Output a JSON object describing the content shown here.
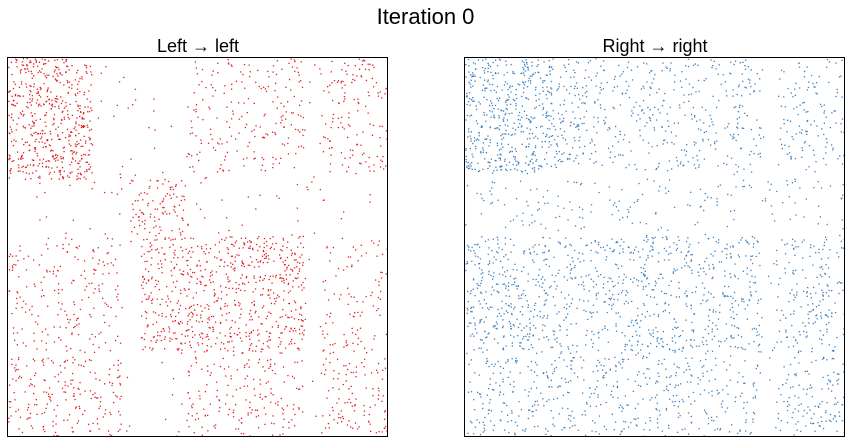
{
  "figure": {
    "suptitle": "Iteration 0"
  },
  "chart_data": [
    {
      "type": "heatmap",
      "title": "Left → left",
      "color": "#e0201e",
      "grid": false,
      "axes_ticks": false,
      "matrix_blocks": [
        {
          "rows": [
            0.0,
            0.13
          ],
          "cols": [
            0.0,
            0.13
          ],
          "density": 0.55
        },
        {
          "rows": [
            0.13,
            0.32
          ],
          "cols": [
            0.0,
            0.13
          ],
          "density": 0.42
        },
        {
          "rows": [
            0.13,
            0.32
          ],
          "cols": [
            0.13,
            0.22
          ],
          "density": 0.55
        },
        {
          "rows": [
            0.0,
            0.13
          ],
          "cols": [
            0.13,
            0.22
          ],
          "density": 0.35
        },
        {
          "rows": [
            0.32,
            0.47
          ],
          "cols": [
            0.32,
            0.47
          ],
          "density": 0.25
        },
        {
          "rows": [
            0.47,
            0.78
          ],
          "cols": [
            0.35,
            0.78
          ],
          "density": 0.32
        },
        {
          "rows": [
            0.0,
            0.3
          ],
          "cols": [
            0.47,
            0.78
          ],
          "density": 0.12
        },
        {
          "rows": [
            0.47,
            0.78
          ],
          "cols": [
            0.0,
            0.3
          ],
          "density": 0.12
        },
        {
          "rows": [
            0.79,
            1.0
          ],
          "cols": [
            0.47,
            0.78
          ],
          "density": 0.14
        },
        {
          "rows": [
            0.0,
            0.3
          ],
          "cols": [
            0.82,
            1.0
          ],
          "density": 0.14
        },
        {
          "rows": [
            0.47,
            0.78
          ],
          "cols": [
            0.82,
            1.0
          ],
          "density": 0.1
        },
        {
          "rows": [
            0.79,
            1.0
          ],
          "cols": [
            0.82,
            1.0
          ],
          "density": 0.16
        },
        {
          "rows": [
            0.79,
            1.0
          ],
          "cols": [
            0.0,
            0.3
          ],
          "density": 0.18
        },
        {
          "rows": [
            0.0,
            1.0
          ],
          "cols": [
            0.0,
            1.0
          ],
          "density": 0.02
        }
      ]
    },
    {
      "type": "heatmap",
      "title": "Right → right",
      "color": "#3a7fbf",
      "grid": false,
      "axes_ticks": false,
      "matrix_blocks": [
        {
          "rows": [
            0.0,
            0.3
          ],
          "cols": [
            0.0,
            0.23
          ],
          "density": 0.42
        },
        {
          "rows": [
            0.0,
            0.3
          ],
          "cols": [
            0.23,
            0.32
          ],
          "density": 0.25
        },
        {
          "rows": [
            0.0,
            0.3
          ],
          "cols": [
            0.32,
            0.78
          ],
          "density": 0.14
        },
        {
          "rows": [
            0.0,
            0.3
          ],
          "cols": [
            0.82,
            1.0
          ],
          "density": 0.14
        },
        {
          "rows": [
            0.32,
            0.45
          ],
          "cols": [
            0.0,
            1.0
          ],
          "density": 0.06
        },
        {
          "rows": [
            0.47,
            0.78
          ],
          "cols": [
            0.0,
            0.23
          ],
          "density": 0.28
        },
        {
          "rows": [
            0.47,
            0.78
          ],
          "cols": [
            0.23,
            0.78
          ],
          "density": 0.22
        },
        {
          "rows": [
            0.47,
            0.78
          ],
          "cols": [
            0.82,
            1.0
          ],
          "density": 0.18
        },
        {
          "rows": [
            0.79,
            1.0
          ],
          "cols": [
            0.0,
            0.78
          ],
          "density": 0.17
        },
        {
          "rows": [
            0.79,
            1.0
          ],
          "cols": [
            0.82,
            1.0
          ],
          "density": 0.18
        },
        {
          "rows": [
            0.0,
            1.0
          ],
          "cols": [
            0.0,
            1.0
          ],
          "density": 0.02
        }
      ]
    }
  ]
}
